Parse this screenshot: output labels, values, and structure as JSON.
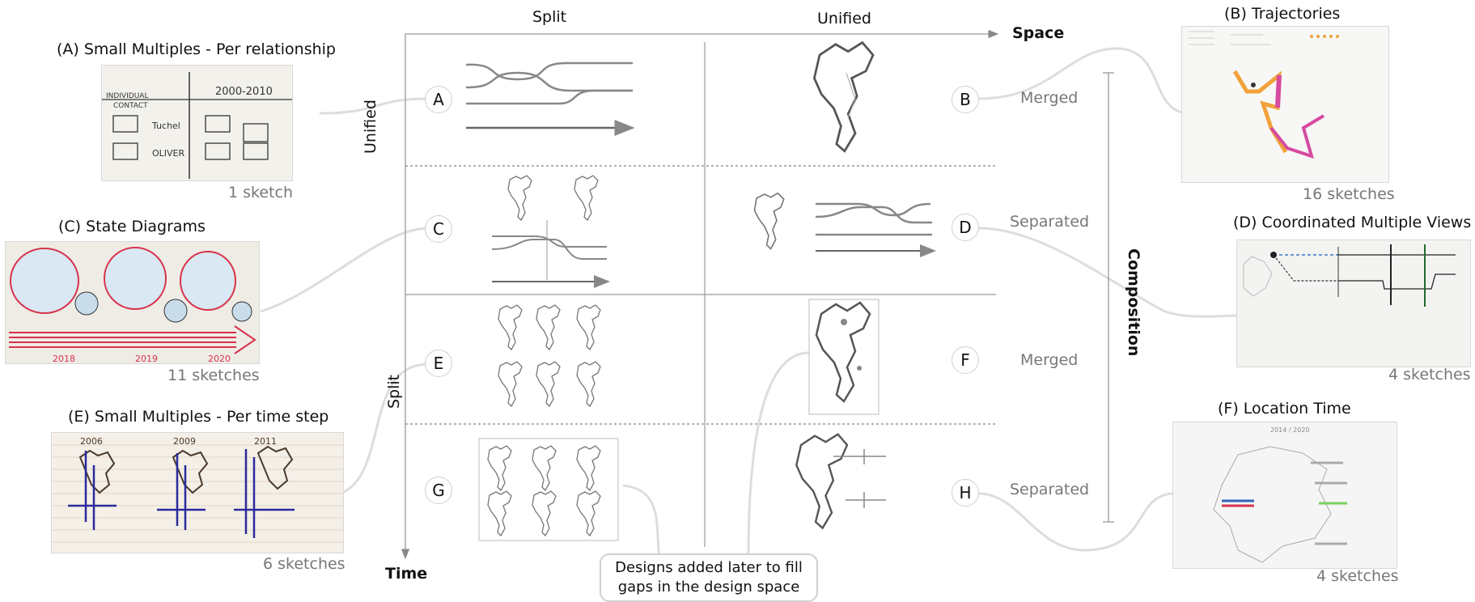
{
  "axes": {
    "top_split": "Split",
    "top_unified": "Unified",
    "space": "Space",
    "time": "Time",
    "left_unified": "Unified",
    "left_split": "Split",
    "composition": "Composition"
  },
  "cells": {
    "A": "A",
    "B": "B",
    "C": "C",
    "D": "D",
    "E": "E",
    "F": "F",
    "G": "G",
    "H": "H"
  },
  "composition_labels": {
    "b": "Merged",
    "d": "Separated",
    "f": "Merged",
    "h": "Separated"
  },
  "panels": {
    "a": {
      "title": "(A) Small Multiples - Per relationship",
      "count": "1 sketch"
    },
    "b": {
      "title": "(B) Trajectories",
      "count": "16 sketches"
    },
    "c": {
      "title": "(C) State Diagrams",
      "count": "11 sketches"
    },
    "d": {
      "title": "(D) Coordinated Multiple Views",
      "count": "4 sketches"
    },
    "e": {
      "title": "(E) Small Multiples - Per time step",
      "count": "6 sketches"
    },
    "f": {
      "title": "(F) Location Time",
      "count": "4 sketches"
    }
  },
  "sketch_text": {
    "a_indiv": "INDIVIDUAL",
    "a_contact": "CONTACT",
    "a_years": "2000-2010",
    "a_row1": "Tuchel",
    "a_row2": "OLIVER",
    "c_y1": "2018",
    "c_y2": "2019",
    "c_y3": "2020",
    "e_y1": "2006",
    "e_y2": "2009",
    "e_y3": "2011",
    "f_years": "2014 / 2020"
  },
  "callout": {
    "line1": "Designs added later to fill",
    "line2": "gaps in the design space"
  },
  "colors": {
    "grid": "#999999",
    "connector": "#dddddd",
    "sketch_gray": "#777777",
    "sketch_red": "#d8324a",
    "sketch_blue": "#2a2a9e",
    "sketch_orange": "#f2a23a",
    "sketch_pink": "#d64aa0"
  }
}
